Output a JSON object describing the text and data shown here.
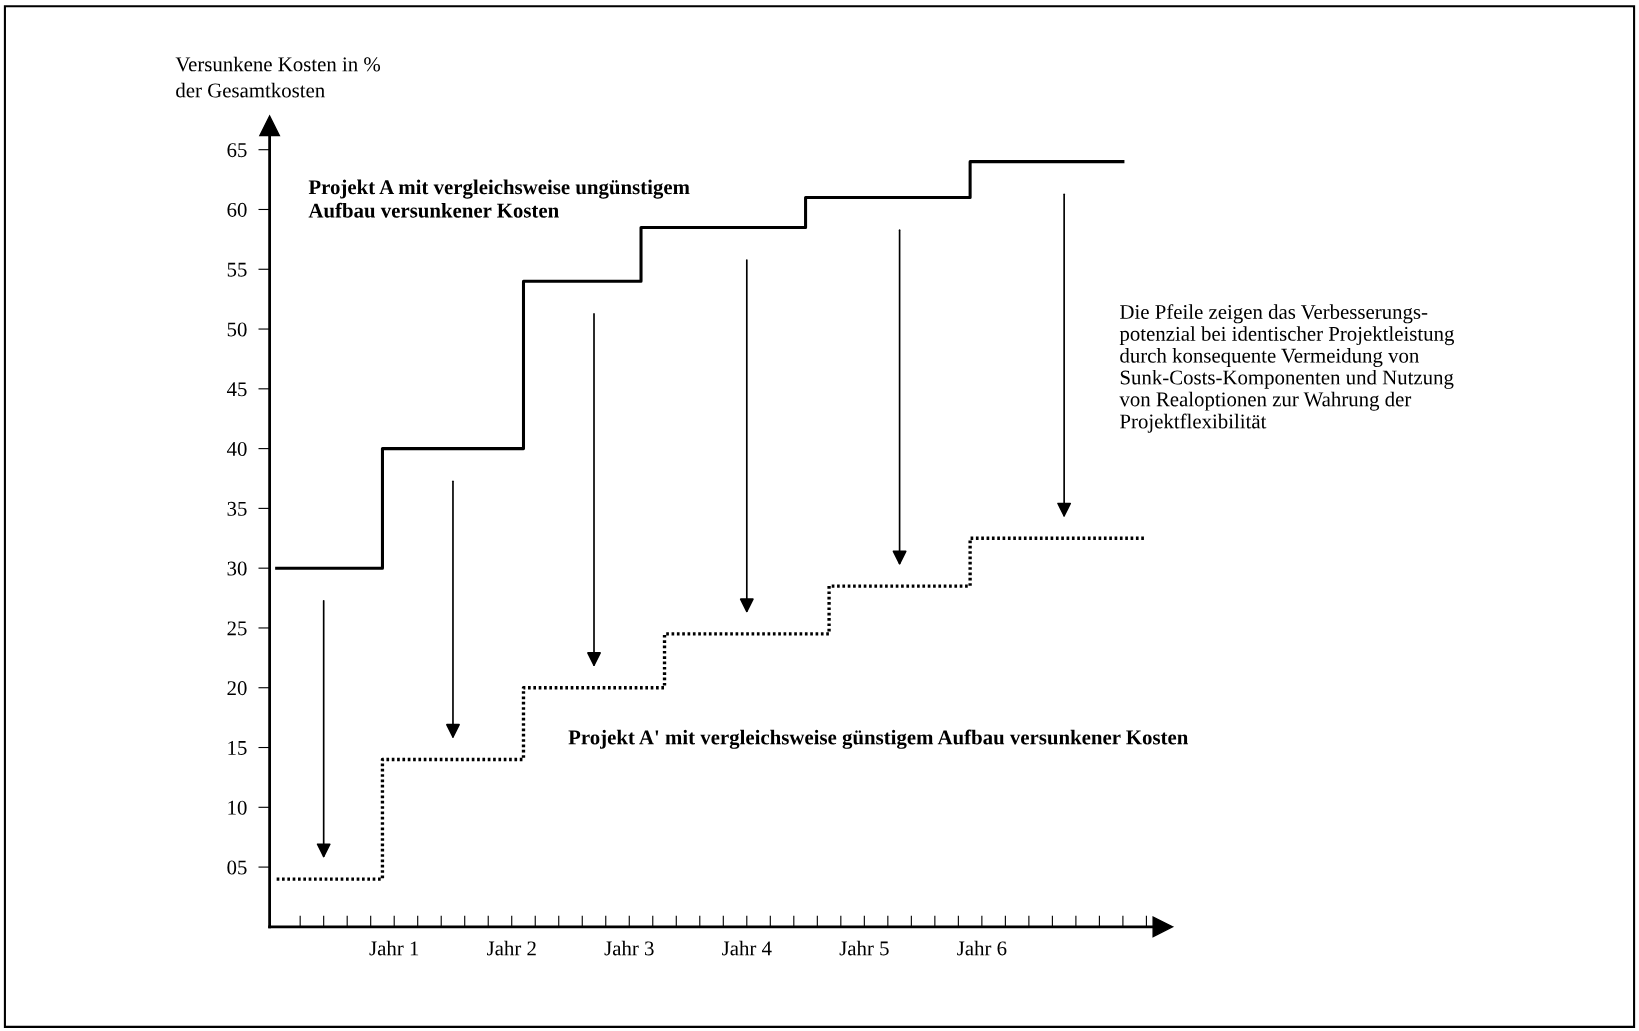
{
  "chart_data": {
    "type": "step",
    "ylabel": "Versunkene Kosten in %\nder Gesamtkosten",
    "categories": [
      null,
      null,
      null,
      null,
      null,
      "Jahr 1",
      null,
      null,
      null,
      null,
      "Jahr 2",
      null,
      null,
      null,
      null,
      "Jahr 3",
      null,
      null,
      null,
      null,
      "Jahr 4",
      null,
      null,
      null,
      null,
      "Jahr 5",
      null,
      null,
      null,
      null,
      "Jahr 6",
      null,
      null,
      null,
      null,
      null,
      null,
      null
    ],
    "series": [
      {
        "name": "Projekt A mit vergleichsweise ungünstigem\nAufbau versunkener Kosten",
        "color": "#000000",
        "line_style": "solid",
        "values": [
          30,
          30,
          30,
          30,
          30,
          40,
          40,
          40,
          40,
          40,
          40,
          54,
          54,
          54,
          54,
          54,
          58.5,
          58.5,
          58.5,
          58.5,
          58.5,
          58.5,
          58.5,
          61,
          61,
          61,
          61,
          61,
          61,
          61,
          64,
          64,
          64,
          64,
          64,
          64,
          64,
          null
        ]
      },
      {
        "name": "Projekt A' mit vergleichsweise günstigem Aufbau versunkener Kosten",
        "color": "#000000",
        "line_style": "dotted",
        "values": [
          4,
          4,
          4,
          4,
          4,
          14,
          14,
          14,
          14,
          14,
          14,
          20,
          20,
          20,
          20,
          20,
          20,
          24.5,
          24.5,
          24.5,
          24.5,
          24.5,
          24.5,
          24.5,
          28.5,
          28.5,
          28.5,
          28.5,
          28.5,
          28.5,
          32.5,
          32.5,
          32.5,
          32.5,
          32.5,
          32.5,
          32.5,
          32.5
        ]
      }
    ],
    "annotations": [
      "Die Pfeile zeigen das Verbesserungs-\npotenzial bei identischer Projektleistung\ndurch konsequente Vermeidung von\nSunk-Costs-Komponenten und Nutzung\nvon Realoptionen zur Wahrung der\nProjektflexibilität"
    ],
    "ylim": [
      0,
      67
    ],
    "yticks": [
      {
        "value": 5,
        "label": "05"
      },
      10,
      15,
      20,
      25,
      30,
      35,
      40,
      45,
      50,
      55,
      60,
      65
    ],
    "grid": false,
    "legend": false
  }
}
